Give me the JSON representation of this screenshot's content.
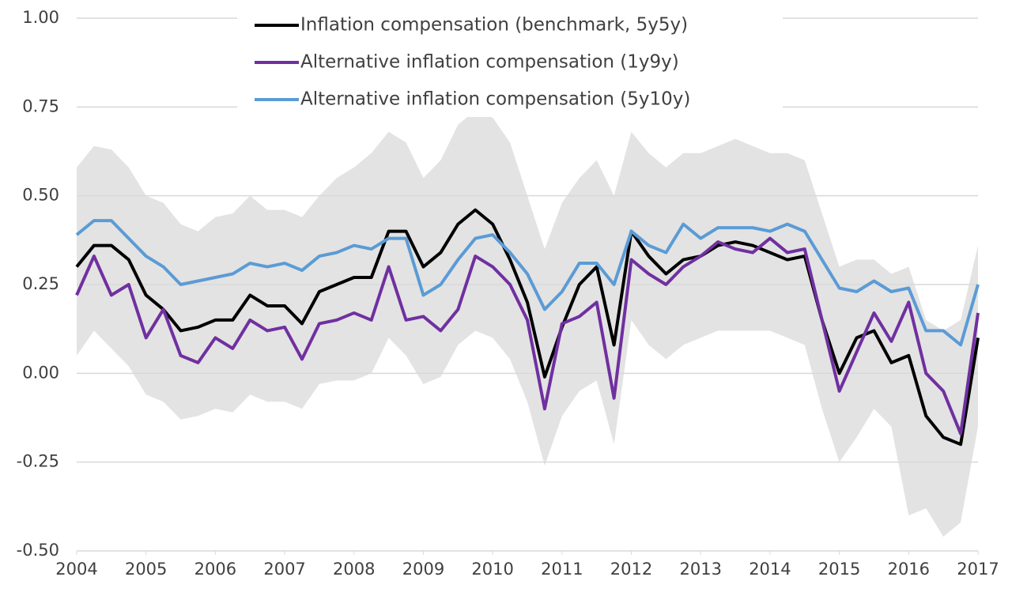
{
  "chart_data": {
    "type": "line",
    "x": [
      2004,
      2004.25,
      2004.5,
      2004.75,
      2005,
      2005.25,
      2005.5,
      2005.75,
      2006,
      2006.25,
      2006.5,
      2006.75,
      2007,
      2007.25,
      2007.5,
      2007.75,
      2008,
      2008.25,
      2008.5,
      2008.75,
      2009,
      2009.25,
      2009.5,
      2009.75,
      2010,
      2010.25,
      2010.5,
      2010.75,
      2011,
      2011.25,
      2011.5,
      2011.75,
      2012,
      2012.25,
      2012.5,
      2012.75,
      2013,
      2013.25,
      2013.5,
      2013.75,
      2014,
      2014.25,
      2014.5,
      2014.75,
      2015,
      2015.25,
      2015.5,
      2015.75,
      2016,
      2016.25,
      2016.5,
      2016.75,
      2017
    ],
    "band": {
      "color": "#e3e3e3",
      "upper": [
        0.58,
        0.64,
        0.63,
        0.58,
        0.5,
        0.48,
        0.42,
        0.4,
        0.44,
        0.45,
        0.5,
        0.46,
        0.46,
        0.44,
        0.5,
        0.55,
        0.58,
        0.62,
        0.68,
        0.65,
        0.55,
        0.6,
        0.7,
        0.74,
        0.72,
        0.65,
        0.5,
        0.35,
        0.48,
        0.55,
        0.6,
        0.5,
        0.68,
        0.62,
        0.58,
        0.62,
        0.62,
        0.64,
        0.66,
        0.64,
        0.62,
        0.62,
        0.6,
        0.45,
        0.3,
        0.32,
        0.32,
        0.28,
        0.3,
        0.15,
        0.12,
        0.15,
        0.36
      ],
      "lower": [
        0.05,
        0.12,
        0.07,
        0.02,
        -0.06,
        -0.08,
        -0.13,
        -0.12,
        -0.1,
        -0.11,
        -0.06,
        -0.08,
        -0.08,
        -0.1,
        -0.03,
        -0.02,
        -0.02,
        0.0,
        0.1,
        0.05,
        -0.03,
        -0.01,
        0.08,
        0.12,
        0.1,
        0.04,
        -0.08,
        -0.26,
        -0.12,
        -0.05,
        -0.02,
        -0.2,
        0.15,
        0.08,
        0.04,
        0.08,
        0.1,
        0.12,
        0.12,
        0.12,
        0.12,
        0.1,
        0.08,
        -0.1,
        -0.25,
        -0.18,
        -0.1,
        -0.15,
        -0.4,
        -0.38,
        -0.46,
        -0.42,
        -0.15
      ]
    },
    "series": [
      {
        "name": "Inflation compensation (benchmark, 5y5y)",
        "color": "#000000",
        "values": [
          0.3,
          0.36,
          0.36,
          0.32,
          0.22,
          0.18,
          0.12,
          0.13,
          0.15,
          0.15,
          0.22,
          0.19,
          0.19,
          0.14,
          0.23,
          0.25,
          0.27,
          0.27,
          0.4,
          0.4,
          0.3,
          0.34,
          0.42,
          0.46,
          0.42,
          0.32,
          0.2,
          -0.01,
          0.13,
          0.25,
          0.3,
          0.08,
          0.4,
          0.33,
          0.28,
          0.32,
          0.33,
          0.36,
          0.37,
          0.36,
          0.34,
          0.32,
          0.33,
          0.15,
          0.0,
          0.1,
          0.12,
          0.03,
          0.05,
          -0.12,
          -0.18,
          -0.2,
          0.1
        ]
      },
      {
        "name": "Alternative inflation compensation (1y9y)",
        "color": "#7030a0",
        "values": [
          0.22,
          0.33,
          0.22,
          0.25,
          0.1,
          0.18,
          0.05,
          0.03,
          0.1,
          0.07,
          0.15,
          0.12,
          0.13,
          0.04,
          0.14,
          0.15,
          0.17,
          0.15,
          0.3,
          0.15,
          0.16,
          0.12,
          0.18,
          0.33,
          0.3,
          0.25,
          0.15,
          -0.1,
          0.14,
          0.16,
          0.2,
          -0.07,
          0.32,
          0.28,
          0.25,
          0.3,
          0.33,
          0.37,
          0.35,
          0.34,
          0.38,
          0.34,
          0.35,
          0.15,
          -0.05,
          0.06,
          0.17,
          0.09,
          0.2,
          0.0,
          -0.05,
          -0.17,
          0.17
        ]
      },
      {
        "name": "Alternative inflation compensation (5y10y)",
        "color": "#5b9bd5",
        "values": [
          0.39,
          0.43,
          0.43,
          0.38,
          0.33,
          0.3,
          0.25,
          0.26,
          0.27,
          0.28,
          0.31,
          0.3,
          0.31,
          0.29,
          0.33,
          0.34,
          0.36,
          0.35,
          0.38,
          0.38,
          0.22,
          0.25,
          0.32,
          0.38,
          0.39,
          0.34,
          0.28,
          0.18,
          0.23,
          0.31,
          0.31,
          0.25,
          0.4,
          0.36,
          0.34,
          0.42,
          0.38,
          0.41,
          0.41,
          0.41,
          0.4,
          0.42,
          0.4,
          0.32,
          0.24,
          0.23,
          0.26,
          0.23,
          0.24,
          0.12,
          0.12,
          0.08,
          0.25
        ]
      }
    ],
    "xlim": [
      2004,
      2017
    ],
    "xticks": [
      2004,
      2005,
      2006,
      2007,
      2008,
      2009,
      2010,
      2011,
      2012,
      2013,
      2014,
      2015,
      2016,
      2017
    ],
    "ylim": [
      -0.5,
      1.0
    ],
    "yticks": [
      {
        "value": -0.5,
        "label": "-0.50"
      },
      {
        "value": -0.25,
        "label": "-0.25"
      },
      {
        "value": 0,
        "label": "0.00"
      },
      {
        "value": 0.25,
        "label": "0.25"
      },
      {
        "value": 0.5,
        "label": "0.50"
      },
      {
        "value": 0.75,
        "label": "0.75"
      },
      {
        "value": 1.0,
        "label": "1.00"
      }
    ],
    "grid": true,
    "legend": "top"
  }
}
